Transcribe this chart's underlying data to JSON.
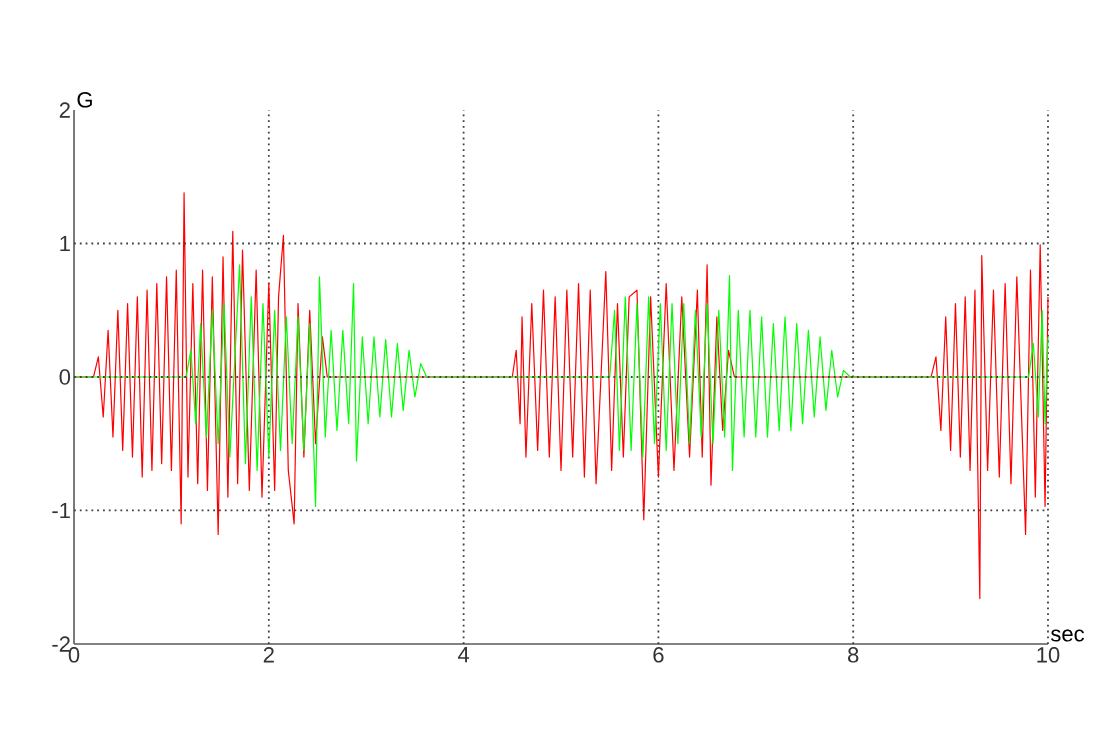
{
  "chart_data": {
    "type": "line",
    "xlabel": "sec",
    "ylabel": "G",
    "xlim": [
      0,
      10
    ],
    "ylim": [
      -2,
      2
    ],
    "xticks": [
      0,
      2,
      4,
      6,
      8,
      10
    ],
    "yticks": [
      -2,
      -1,
      0,
      1,
      2
    ],
    "grid": true,
    "line_style": "solid",
    "marker": "none",
    "series": [
      {
        "color": "#ff0000",
        "x": [
          0,
          0.2,
          0.25,
          0.3,
          0.35,
          0.4,
          0.45,
          0.5,
          0.55,
          0.6,
          0.65,
          0.7,
          0.75,
          0.8,
          0.85,
          0.9,
          0.95,
          1.0,
          1.05,
          1.1,
          1.13,
          1.17,
          1.22,
          1.27,
          1.32,
          1.37,
          1.42,
          1.48,
          1.53,
          1.58,
          1.63,
          1.68,
          1.73,
          1.8,
          1.87,
          1.93,
          2.0,
          2.06,
          2.1,
          2.15,
          2.2,
          2.26,
          2.3,
          2.36,
          2.42,
          2.48,
          2.55,
          2.6,
          4.5,
          4.54,
          4.58,
          4.6,
          4.64,
          4.7,
          4.76,
          4.82,
          4.88,
          4.94,
          5.0,
          5.06,
          5.12,
          5.18,
          5.24,
          5.3,
          5.36,
          5.46,
          5.52,
          5.58,
          5.64,
          5.7,
          5.78,
          5.85,
          5.92,
          6.0,
          6.08,
          6.16,
          6.24,
          6.32,
          6.4,
          6.45,
          6.5,
          6.54,
          6.6,
          6.66,
          6.72,
          6.78,
          8.8,
          8.85,
          8.9,
          8.95,
          9.0,
          9.05,
          9.1,
          9.15,
          9.2,
          9.25,
          9.3,
          9.32,
          9.38,
          9.44,
          9.5,
          9.56,
          9.62,
          9.68,
          9.77,
          9.82,
          9.87,
          9.92,
          9.97,
          10.0
        ],
        "values": [
          0,
          0,
          0.15,
          -0.3,
          0.35,
          -0.45,
          0.5,
          -0.55,
          0.55,
          -0.6,
          0.6,
          -0.75,
          0.65,
          -0.7,
          0.7,
          -0.65,
          0.75,
          -0.7,
          0.8,
          -1.1,
          1.38,
          -0.75,
          0.7,
          -0.8,
          0.8,
          -0.85,
          0.75,
          -1.18,
          0.9,
          -0.9,
          1.09,
          -0.8,
          0.95,
          -0.85,
          0.8,
          -0.9,
          0.7,
          -0.85,
          0.6,
          1.06,
          -0.7,
          -1.1,
          0.55,
          -0.6,
          0.5,
          -0.5,
          0.3,
          0,
          0,
          0.2,
          -0.35,
          0.45,
          -0.6,
          0.55,
          -0.55,
          0.65,
          -0.6,
          0.6,
          -0.7,
          0.65,
          -0.6,
          0.7,
          -0.75,
          0.65,
          -0.8,
          0.79,
          -0.7,
          0.55,
          -0.6,
          0.6,
          0.65,
          -1.07,
          0.6,
          -0.75,
          0.7,
          -0.7,
          0.6,
          -0.6,
          0.65,
          -0.6,
          0.84,
          -0.81,
          0.45,
          -0.4,
          0.2,
          0,
          0,
          0.15,
          -0.4,
          0.45,
          -0.55,
          0.55,
          -0.6,
          0.6,
          -0.7,
          0.65,
          -1.66,
          0.91,
          -0.7,
          0.65,
          -0.75,
          0.7,
          -0.8,
          0.75,
          -1.18,
          0.8,
          -0.9,
          0.99,
          -0.97,
          0.6
        ]
      },
      {
        "color": "#00ff00",
        "x": [
          0,
          1.15,
          1.2,
          1.25,
          1.3,
          1.36,
          1.42,
          1.48,
          1.54,
          1.6,
          1.7,
          1.76,
          1.82,
          1.88,
          1.94,
          2.0,
          2.06,
          2.12,
          2.18,
          2.24,
          2.3,
          2.36,
          2.42,
          2.48,
          2.52,
          2.58,
          2.64,
          2.7,
          2.76,
          2.82,
          2.87,
          2.9,
          2.96,
          3.02,
          3.08,
          3.14,
          3.2,
          3.26,
          3.32,
          3.38,
          3.44,
          3.5,
          3.56,
          3.62,
          5.5,
          5.55,
          5.6,
          5.66,
          5.72,
          5.78,
          5.84,
          5.9,
          5.96,
          6.02,
          6.08,
          6.14,
          6.2,
          6.26,
          6.32,
          6.38,
          6.44,
          6.5,
          6.56,
          6.62,
          6.68,
          6.73,
          6.76,
          6.82,
          6.88,
          6.94,
          7.0,
          7.06,
          7.12,
          7.18,
          7.24,
          7.3,
          7.36,
          7.42,
          7.48,
          7.54,
          7.6,
          7.66,
          7.72,
          7.78,
          7.84,
          7.9,
          7.97,
          9.8,
          9.85,
          9.9,
          9.94,
          9.97,
          10.0
        ],
        "values": [
          0,
          0,
          0.2,
          -0.35,
          0.4,
          -0.45,
          0.5,
          -0.5,
          0.55,
          -0.6,
          0.84,
          -0.65,
          0.6,
          -0.7,
          0.55,
          -0.6,
          0.5,
          -0.55,
          0.45,
          -0.5,
          0.45,
          -0.55,
          0.4,
          -0.97,
          0.75,
          -0.45,
          0.35,
          -0.4,
          0.35,
          -0.35,
          0.7,
          -0.63,
          0.3,
          -0.35,
          0.3,
          -0.3,
          0.28,
          -0.3,
          0.25,
          -0.25,
          0.2,
          -0.15,
          0.1,
          0,
          0,
          0.5,
          -0.55,
          0.6,
          -0.55,
          0.55,
          -0.6,
          0.6,
          -0.5,
          0.55,
          -0.55,
          0.55,
          -0.5,
          0.55,
          -0.5,
          0.5,
          -0.45,
          0.55,
          -0.5,
          0.5,
          -0.45,
          0.76,
          -0.7,
          0.5,
          -0.45,
          0.5,
          -0.45,
          0.45,
          -0.45,
          0.4,
          -0.4,
          0.45,
          -0.4,
          0.4,
          -0.35,
          0.35,
          -0.3,
          0.3,
          -0.25,
          0.2,
          -0.15,
          0.05,
          0,
          0,
          0.25,
          -0.3,
          0.5,
          -0.35,
          0.3
        ]
      }
    ]
  }
}
